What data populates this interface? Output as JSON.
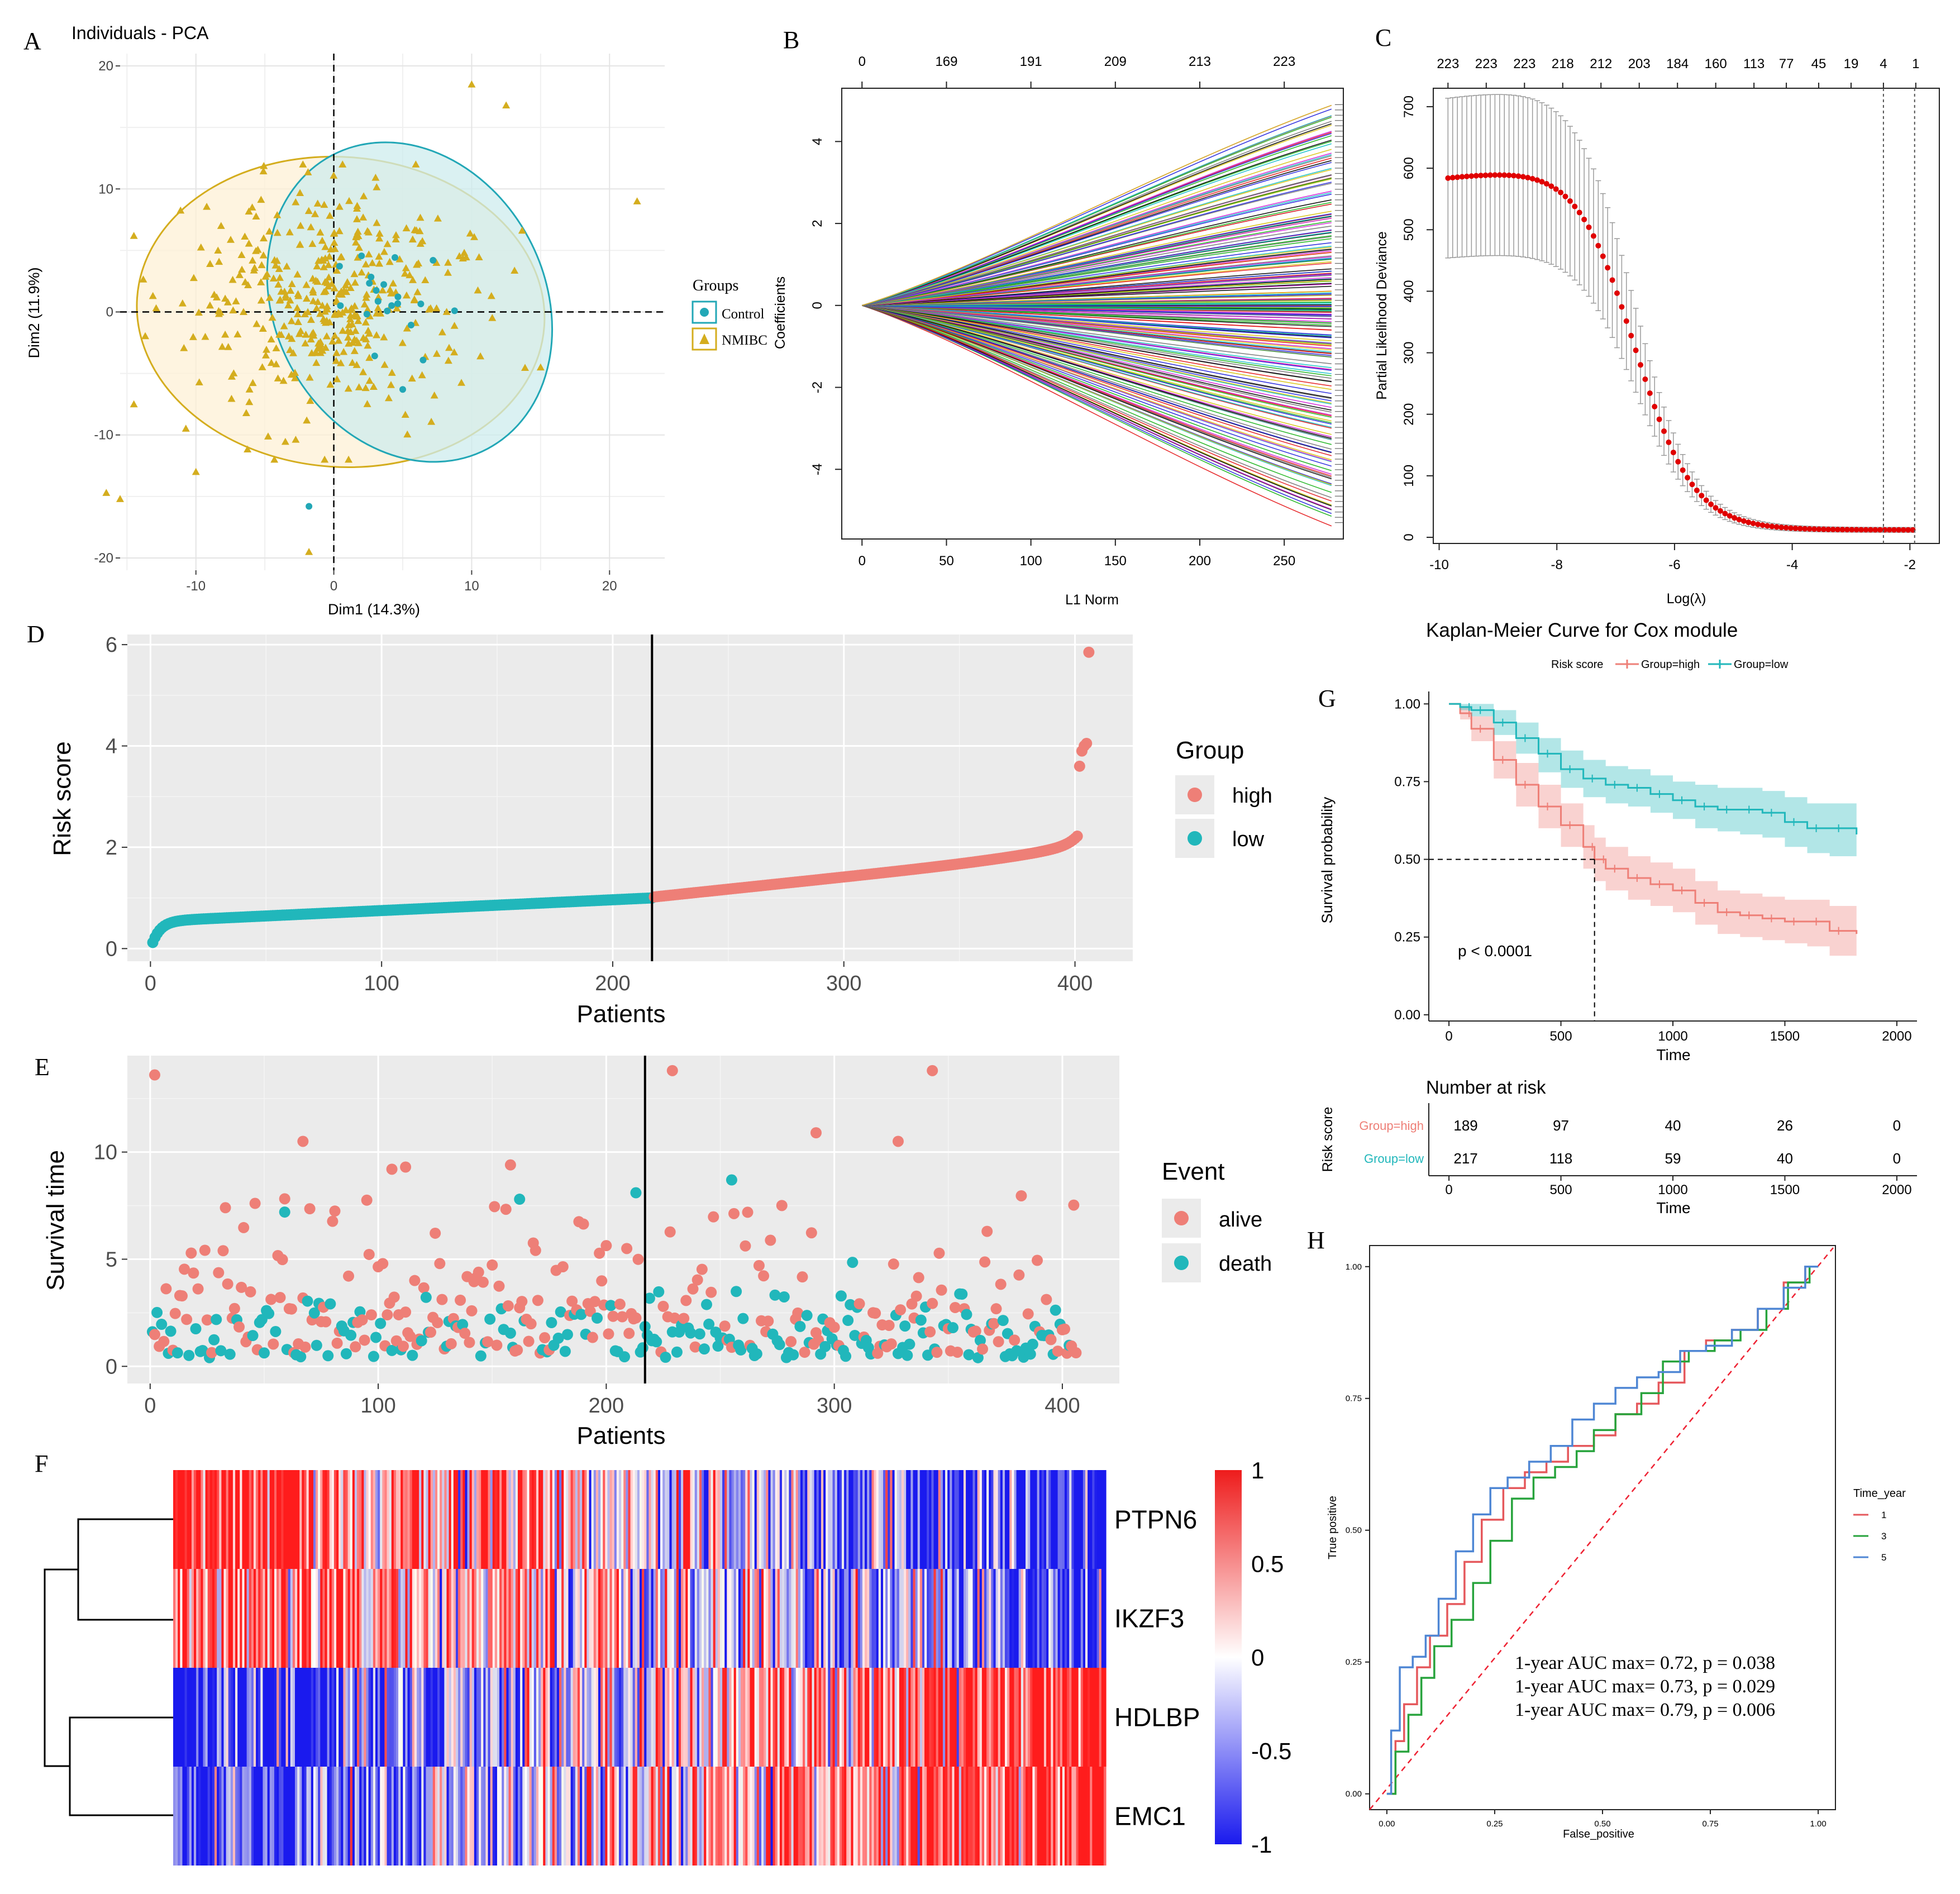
{
  "colors": {
    "high": "#ee7f77",
    "low": "#21b7bb",
    "nmibc": "#d4ad1e",
    "control": "#22a7b6",
    "panel_bg": "#ebebeb",
    "grid": "#ffffff",
    "heat_hi": "#ee1c1c",
    "heat_lo": "#1a1aee",
    "roc1": "#e5585c",
    "roc3": "#27a33c",
    "roc5": "#4e86d4"
  },
  "panels": {
    "A": "A",
    "B": "B",
    "C": "C",
    "D": "D",
    "E": "E",
    "F": "F",
    "G": "G",
    "H": "H"
  },
  "chart_data": [
    {
      "id": "A",
      "type": "scatter",
      "title": "Individuals - PCA",
      "xlabel": "Dim1 (14.3%)",
      "ylabel": "Dim2 (11.9%)",
      "xlim": [
        -15.5,
        24
      ],
      "ylim": [
        -21,
        21
      ],
      "xticks": [
        "-10",
        "0",
        "10",
        "20"
      ],
      "xtick_values": [
        -10,
        0,
        10,
        20
      ],
      "yticks": [
        "-20",
        "-10",
        "0",
        "10",
        "20"
      ],
      "ytick_values": [
        -20,
        -10,
        0,
        10,
        20
      ],
      "legend_title": "Groups",
      "legend": [
        "Control",
        "NMIBC"
      ],
      "ellipses": [
        {
          "group": "NMIBC",
          "cx": 0.5,
          "cy": 0,
          "rx": 14.8,
          "ry": 12.6,
          "angle": 4
        },
        {
          "group": "Control",
          "cx": 5.5,
          "cy": 0.8,
          "rx": 9.8,
          "ry": 13.5,
          "angle": -28
        }
      ],
      "outliers": [
        {
          "group": "NMIBC",
          "x": 10,
          "y": 18.5
        },
        {
          "group": "NMIBC",
          "x": 12.5,
          "y": 16.8
        },
        {
          "group": "NMIBC",
          "x": 22,
          "y": 9
        },
        {
          "group": "NMIBC",
          "x": -16.5,
          "y": -14.7
        },
        {
          "group": "NMIBC",
          "x": -15.5,
          "y": -15.2
        },
        {
          "group": "NMIBC",
          "x": -1.8,
          "y": -19.5
        },
        {
          "group": "NMIBC",
          "x": -10,
          "y": -13
        },
        {
          "group": "NMIBC",
          "x": -14.5,
          "y": -7.5
        },
        {
          "group": "NMIBC",
          "x": 15,
          "y": -4.5
        },
        {
          "group": "Control",
          "x": -1.8,
          "y": -15.8
        },
        {
          "group": "Control",
          "x": 5,
          "y": -6.3
        },
        {
          "group": "Control",
          "x": 7.2,
          "y": 4.2
        }
      ],
      "n_nmibc": 406,
      "n_control": 19
    },
    {
      "id": "B",
      "type": "line",
      "xlabel": "L1 Norm",
      "ylabel": "Coefficients",
      "xlim": [
        -12,
        285
      ],
      "ylim": [
        -5.7,
        5.3
      ],
      "xticks": [
        "0",
        "50",
        "100",
        "150",
        "200",
        "250"
      ],
      "xtick_values": [
        0,
        50,
        100,
        150,
        200,
        250
      ],
      "yticks": [
        "-4",
        "-2",
        "0",
        "2",
        "4"
      ],
      "ytick_values": [
        -4,
        -2,
        0,
        2,
        4
      ],
      "top_ticks": [
        "0",
        "169",
        "191",
        "209",
        "213",
        "223"
      ],
      "top_tick_values": [
        0,
        50,
        100,
        150,
        200,
        250
      ],
      "n_paths": 223,
      "end_range": [
        -5.3,
        4.9
      ]
    },
    {
      "id": "C",
      "type": "scatter",
      "xlabel": "Log(λ)",
      "ylabel": "Partial Likelihood Deviance",
      "xlim": [
        -10.1,
        -1.5
      ],
      "ylim": [
        -10,
        730
      ],
      "xticks": [
        "-10",
        "-8",
        "-6",
        "-4",
        "-2"
      ],
      "xtick_values": [
        -10,
        -8,
        -6,
        -4,
        -2
      ],
      "yticks": [
        "0",
        "100",
        "200",
        "300",
        "400",
        "500",
        "600",
        "700"
      ],
      "ytick_values": [
        0,
        100,
        200,
        300,
        400,
        500,
        600,
        700
      ],
      "top_ticks": [
        "223",
        "223",
        "223",
        "218",
        "212",
        "203",
        "184",
        "160",
        "113",
        "77",
        "45",
        "19",
        "4",
        "1"
      ],
      "top_tick_values": [
        -9.85,
        -9.2,
        -8.55,
        -7.9,
        -7.25,
        -6.6,
        -5.95,
        -5.3,
        -4.65,
        -4.1,
        -3.55,
        -3.0,
        -2.45,
        -1.9
      ],
      "curve": {
        "x_start": -9.85,
        "x_end": -1.95,
        "y_max": 585,
        "y_floor": 12,
        "mid": -6.7
      },
      "vlines": [
        -2.45,
        -1.92
      ]
    },
    {
      "id": "D",
      "type": "scatter",
      "xlabel": "Patients",
      "ylabel": "Risk score",
      "xlim": [
        -10,
        425
      ],
      "ylim": [
        -0.25,
        6.2
      ],
      "xticks": [
        "0",
        "100",
        "200",
        "300",
        "400"
      ],
      "xtick_values": [
        0,
        100,
        200,
        300,
        400
      ],
      "yticks": [
        "0",
        "2",
        "4",
        "6"
      ],
      "ytick_values": [
        0,
        2,
        4,
        6
      ],
      "legend_title": "Group",
      "legend": [
        "high",
        "low"
      ],
      "cutoff": 217,
      "n_low": 217,
      "n_high": 189,
      "max_value": 5.85,
      "cutoff_value": 1.02
    },
    {
      "id": "E",
      "type": "scatter",
      "xlabel": "Patients",
      "ylabel": "Survival time",
      "xlim": [
        -10,
        425
      ],
      "ylim": [
        -0.8,
        14.5
      ],
      "xticks": [
        "0",
        "100",
        "200",
        "300",
        "400"
      ],
      "xtick_values": [
        0,
        100,
        200,
        300,
        400
      ],
      "yticks": [
        "0",
        "5",
        "10"
      ],
      "ytick_values": [
        0,
        5,
        10
      ],
      "legend_title": "Event",
      "legend": [
        "alive",
        "death"
      ],
      "cutoff": 217,
      "highlights": [
        {
          "x": 2,
          "y": 13.6,
          "event": "alive"
        },
        {
          "x": 229,
          "y": 13.8,
          "event": "alive"
        },
        {
          "x": 343,
          "y": 13.8,
          "event": "alive"
        },
        {
          "x": 67,
          "y": 10.5,
          "event": "alive"
        },
        {
          "x": 328,
          "y": 10.5,
          "event": "alive"
        },
        {
          "x": 292,
          "y": 10.9,
          "event": "alive"
        },
        {
          "x": 106,
          "y": 9.2,
          "event": "alive"
        },
        {
          "x": 112,
          "y": 9.3,
          "event": "alive"
        },
        {
          "x": 158,
          "y": 9.4,
          "event": "alive"
        },
        {
          "x": 255,
          "y": 8.7,
          "event": "death"
        },
        {
          "x": 213,
          "y": 8.1,
          "event": "death"
        },
        {
          "x": 59,
          "y": 7.2,
          "event": "death"
        },
        {
          "x": 162,
          "y": 7.8,
          "event": "death"
        }
      ]
    },
    {
      "id": "F",
      "type": "heatmap",
      "rows": [
        "PTPN6",
        "IKZF3",
        "HDLBP",
        "EMC1"
      ],
      "n_cols": 406,
      "scale_ticks": [
        "1",
        "0.5",
        "0",
        "-0.5",
        "-1"
      ],
      "scale_values": [
        1,
        0.5,
        0,
        -0.5,
        -1
      ]
    },
    {
      "id": "G",
      "type": "line",
      "title": "Kaplan-Meier Curve for Cox module",
      "xlabel": "Time",
      "ylabel": "Survival probability",
      "xlim": [
        -90,
        2090
      ],
      "ylim": [
        -0.02,
        1.04
      ],
      "xticks": [
        "0",
        "500",
        "1000",
        "1500",
        "2000"
      ],
      "xtick_values": [
        0,
        500,
        1000,
        1500,
        2000
      ],
      "yticks": [
        "0.00",
        "0.25",
        "0.50",
        "0.75",
        "1.00"
      ],
      "ytick_values": [
        0,
        0.25,
        0.5,
        0.75,
        1
      ],
      "legend_title": "Risk score",
      "legend": [
        "Group=high",
        "Group=low"
      ],
      "pvalue": "p < 0.0001",
      "median_high": 650,
      "series": [
        {
          "name": "Group=high",
          "x": [
            0,
            50,
            100,
            200,
            300,
            400,
            500,
            600,
            650,
            700,
            800,
            900,
            1000,
            1100,
            1200,
            1300,
            1400,
            1500,
            1600,
            1700,
            1820
          ],
          "y": [
            1.0,
            0.97,
            0.92,
            0.82,
            0.74,
            0.67,
            0.61,
            0.54,
            0.5,
            0.47,
            0.44,
            0.42,
            0.4,
            0.36,
            0.33,
            0.32,
            0.31,
            0.3,
            0.3,
            0.27,
            0.26
          ],
          "lower": [
            1.0,
            0.95,
            0.88,
            0.76,
            0.67,
            0.6,
            0.54,
            0.47,
            0.43,
            0.4,
            0.37,
            0.35,
            0.33,
            0.29,
            0.26,
            0.25,
            0.24,
            0.23,
            0.22,
            0.19,
            0.19
          ],
          "upper": [
            1.0,
            0.99,
            0.96,
            0.88,
            0.81,
            0.74,
            0.68,
            0.61,
            0.57,
            0.54,
            0.51,
            0.49,
            0.47,
            0.43,
            0.4,
            0.39,
            0.38,
            0.37,
            0.37,
            0.35,
            0.35
          ]
        },
        {
          "name": "Group=low",
          "x": [
            0,
            50,
            100,
            200,
            300,
            400,
            500,
            600,
            700,
            800,
            900,
            1000,
            1100,
            1200,
            1300,
            1400,
            1500,
            1600,
            1700,
            1820
          ],
          "y": [
            1.0,
            0.99,
            0.98,
            0.94,
            0.89,
            0.84,
            0.79,
            0.76,
            0.74,
            0.73,
            0.71,
            0.69,
            0.67,
            0.66,
            0.66,
            0.65,
            0.62,
            0.6,
            0.6,
            0.58
          ],
          "lower": [
            1.0,
            0.98,
            0.96,
            0.9,
            0.84,
            0.78,
            0.73,
            0.7,
            0.68,
            0.67,
            0.65,
            0.63,
            0.6,
            0.59,
            0.58,
            0.57,
            0.54,
            0.52,
            0.51,
            0.49
          ],
          "upper": [
            1.0,
            1.0,
            1.0,
            0.98,
            0.94,
            0.89,
            0.85,
            0.82,
            0.8,
            0.79,
            0.77,
            0.75,
            0.74,
            0.73,
            0.73,
            0.72,
            0.7,
            0.68,
            0.68,
            0.67
          ]
        }
      ],
      "risk_table": {
        "title": "Number at risk",
        "ylabel": "Risk score",
        "xlabel": "Time",
        "rows": [
          {
            "label": "Group=high",
            "counts": [
              "189",
              "97",
              "40",
              "26",
              "0"
            ]
          },
          {
            "label": "Group=low",
            "counts": [
              "217",
              "118",
              "59",
              "40",
              "0"
            ]
          }
        ],
        "times": [
          0,
          500,
          1000,
          1500,
          2000
        ]
      }
    },
    {
      "id": "H",
      "type": "line",
      "xlabel": "False_positive",
      "ylabel": "True positive",
      "xlim": [
        -0.04,
        1.04
      ],
      "ylim": [
        -0.03,
        1.04
      ],
      "xticks": [
        "0.00",
        "0.25",
        "0.50",
        "0.75",
        "1.00"
      ],
      "xtick_values": [
        0,
        0.25,
        0.5,
        0.75,
        1
      ],
      "yticks": [
        "0.00",
        "0.25",
        "0.50",
        "0.75",
        "1.00"
      ],
      "ytick_values": [
        0,
        0.25,
        0.5,
        0.75,
        1
      ],
      "legend_title": "Time_year",
      "legend": [
        "1",
        "3",
        "5"
      ],
      "annotations": [
        "1-year AUC max= 0.72, p = 0.038",
        "1-year AUC max= 0.73, p = 0.029",
        "1-year AUC max= 0.79, p = 0.006"
      ],
      "series": [
        {
          "name": "1",
          "x": [
            0,
            0.02,
            0.04,
            0.07,
            0.1,
            0.14,
            0.18,
            0.22,
            0.27,
            0.32,
            0.37,
            0.42,
            0.48,
            0.53,
            0.58,
            0.63,
            0.69,
            0.74,
            0.8,
            0.86,
            0.92,
            0.97,
            1.0
          ],
          "y": [
            0,
            0.1,
            0.17,
            0.24,
            0.3,
            0.36,
            0.44,
            0.52,
            0.58,
            0.61,
            0.63,
            0.66,
            0.68,
            0.72,
            0.74,
            0.78,
            0.84,
            0.86,
            0.88,
            0.92,
            0.97,
            1.0,
            1.0
          ]
        },
        {
          "name": "3",
          "x": [
            0,
            0.02,
            0.05,
            0.08,
            0.11,
            0.15,
            0.2,
            0.24,
            0.29,
            0.34,
            0.39,
            0.44,
            0.48,
            0.53,
            0.59,
            0.64,
            0.7,
            0.76,
            0.82,
            0.88,
            0.93,
            0.98,
            1.0
          ],
          "y": [
            0,
            0.08,
            0.15,
            0.22,
            0.28,
            0.33,
            0.4,
            0.48,
            0.56,
            0.6,
            0.62,
            0.65,
            0.69,
            0.72,
            0.76,
            0.82,
            0.84,
            0.86,
            0.88,
            0.92,
            0.97,
            1.0,
            1.0
          ]
        },
        {
          "name": "5",
          "x": [
            0,
            0.01,
            0.03,
            0.06,
            0.09,
            0.12,
            0.16,
            0.2,
            0.24,
            0.28,
            0.33,
            0.38,
            0.43,
            0.48,
            0.53,
            0.58,
            0.63,
            0.68,
            0.74,
            0.8,
            0.86,
            0.92,
            0.97,
            1.0
          ],
          "y": [
            0,
            0.12,
            0.24,
            0.26,
            0.3,
            0.37,
            0.46,
            0.53,
            0.58,
            0.6,
            0.63,
            0.66,
            0.71,
            0.74,
            0.77,
            0.79,
            0.8,
            0.84,
            0.85,
            0.88,
            0.92,
            0.96,
            1.0,
            1.0
          ]
        }
      ]
    }
  ]
}
